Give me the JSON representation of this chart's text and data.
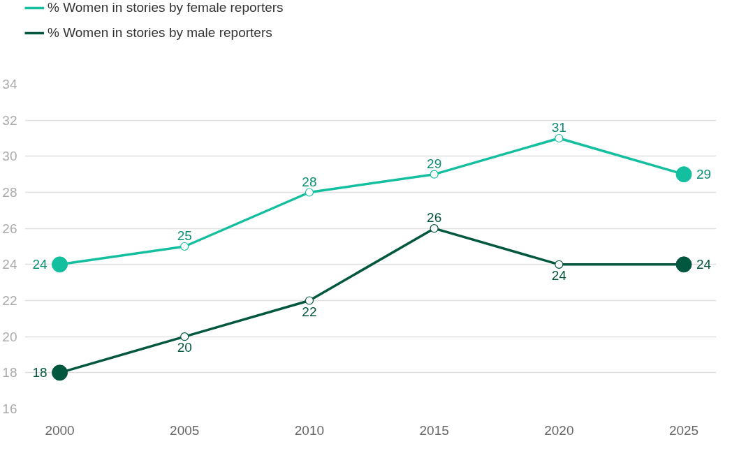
{
  "chart_data": {
    "type": "line",
    "x": [
      2000,
      2005,
      2010,
      2015,
      2020,
      2025
    ],
    "series": [
      {
        "name": "% Women in stories by female reporters",
        "color": "#13bf9e",
        "values": [
          24,
          25,
          28,
          29,
          31,
          29
        ]
      },
      {
        "name": "% Women in stories by male reporters",
        "color": "#02573f",
        "values": [
          18,
          20,
          22,
          26,
          24,
          24
        ]
      }
    ],
    "xlim": [
      1998.6,
      2026.3
    ],
    "xticks": [
      2000,
      2005,
      2010,
      2015,
      2020,
      2025
    ],
    "ylim": [
      16,
      34
    ],
    "yticks": [
      16,
      18,
      20,
      22,
      24,
      26,
      28,
      30,
      32,
      34
    ],
    "grid": "y",
    "legend": "top left",
    "marker": "circle",
    "line_style": "solid",
    "data_labels": true
  }
}
